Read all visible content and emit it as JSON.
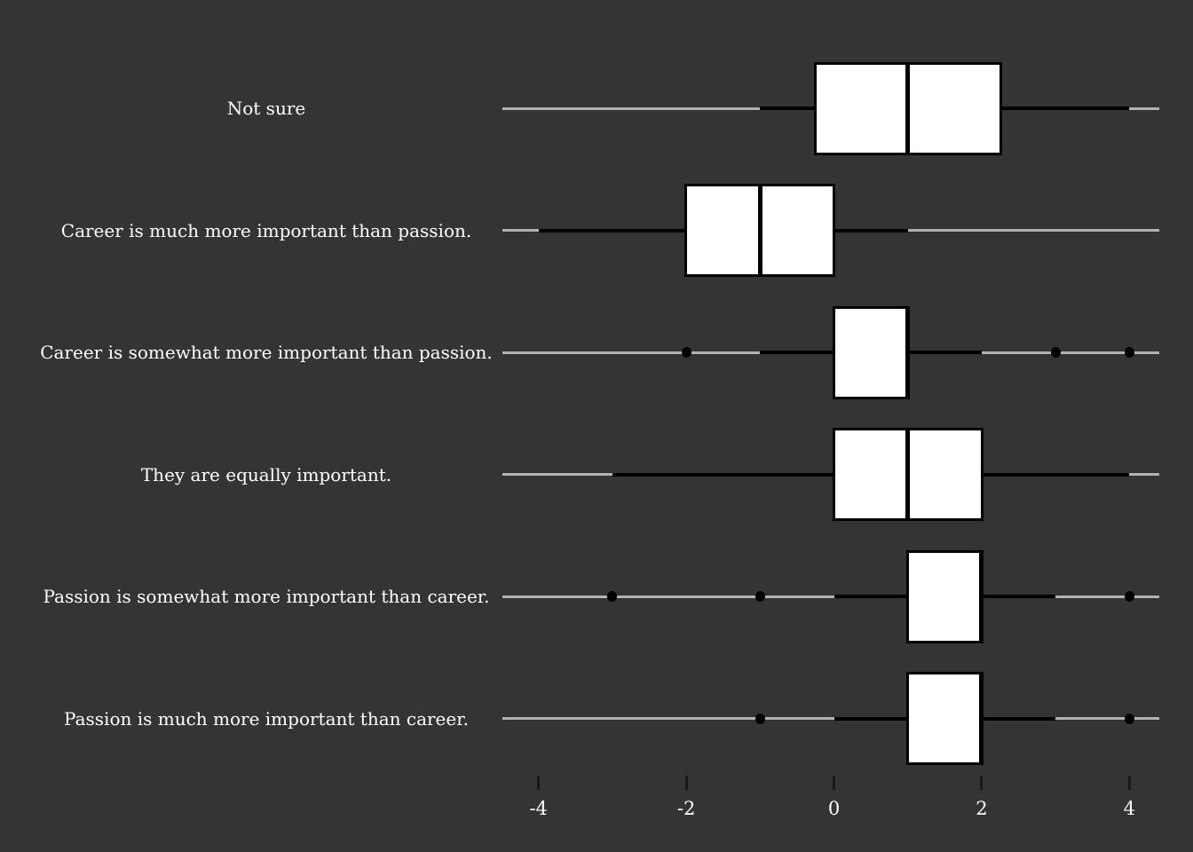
{
  "chart_data": {
    "type": "boxplot",
    "orientation": "horizontal",
    "title": "",
    "xlabel": "",
    "ylabel": "",
    "xlim": [
      -4.5,
      4.5
    ],
    "x_ticks": [
      {
        "value": -4,
        "label": "-4"
      },
      {
        "value": -2,
        "label": "-2"
      },
      {
        "value": 0,
        "label": "0"
      },
      {
        "value": 2,
        "label": "2"
      },
      {
        "value": 4,
        "label": "4"
      }
    ],
    "grid": "off",
    "legend": "none",
    "categories": [
      "Not sure",
      "Career is much more important than passion.",
      "Career is somewhat more important than passion.",
      "They are equally important.",
      "Passion is somewhat more important than career.",
      "Passion is much more important than career."
    ],
    "series": [
      {
        "label": "Not sure",
        "whisker_low": -1,
        "q1": -0.25,
        "median": 1,
        "q3": 2.25,
        "whisker_high": 4,
        "outliers": []
      },
      {
        "label": "Career is much more important than passion.",
        "whisker_low": -4,
        "q1": -2,
        "median": -1,
        "q3": 0,
        "whisker_high": 1,
        "outliers": []
      },
      {
        "label": "Career is somewhat more important than passion.",
        "whisker_low": -1,
        "q1": 0,
        "median": 1,
        "q3": 1,
        "whisker_high": 2,
        "outliers": [
          -2,
          3,
          4
        ]
      },
      {
        "label": "They are equally important.",
        "whisker_low": -3,
        "q1": 0,
        "median": 1,
        "q3": 2,
        "whisker_high": 4,
        "outliers": []
      },
      {
        "label": "Passion is somewhat more important than career.",
        "whisker_low": 0,
        "q1": 1,
        "median": 2,
        "q3": 2,
        "whisker_high": 3,
        "outliers": [
          -3,
          -1,
          4
        ]
      },
      {
        "label": "Passion is much more important than career.",
        "whisker_low": 0,
        "q1": 1,
        "median": 2,
        "q3": 2,
        "whisker_high": 3,
        "outliers": [
          -1,
          4
        ]
      }
    ],
    "colors": {
      "background": "#343434",
      "box_fill": "#ffffff",
      "box_border": "#000000",
      "median": "#000000",
      "whisker": "#000000",
      "range_line": "#b2b2b2",
      "outlier": "#000000",
      "label_text": "#ffffff",
      "tick_mark": "#181818"
    }
  }
}
